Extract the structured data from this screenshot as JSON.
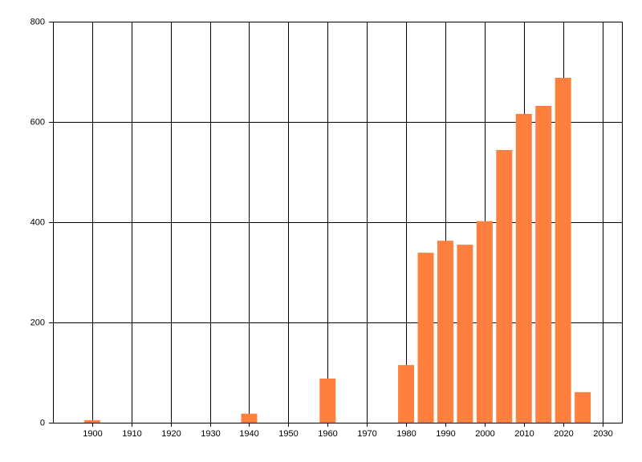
{
  "chart_data": {
    "type": "bar",
    "x": [
      1900,
      1940,
      1960,
      1980,
      1985,
      1990,
      1995,
      2000,
      2005,
      2010,
      2015,
      2020,
      2025
    ],
    "values": [
      5,
      18,
      88,
      115,
      339,
      363,
      355,
      402,
      544,
      616,
      632,
      688,
      61
    ],
    "color": "#ff7f3f",
    "xlim": [
      1890,
      2035
    ],
    "ylim": [
      0,
      800
    ],
    "xticks": [
      1900,
      1910,
      1920,
      1930,
      1940,
      1950,
      1960,
      1970,
      1980,
      1990,
      2000,
      2010,
      2020,
      2030
    ],
    "yticks": [
      0,
      200,
      400,
      600,
      800
    ],
    "grid": true
  }
}
